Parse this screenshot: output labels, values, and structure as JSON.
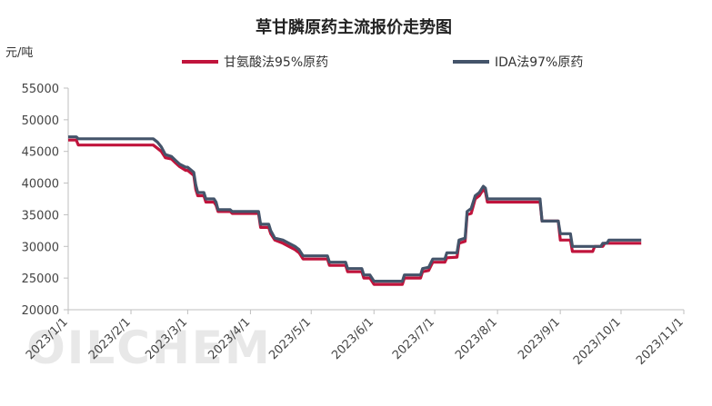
{
  "chart_data": {
    "type": "line",
    "title": "草甘膦原药主流报价走势图",
    "unit_label": "元/吨",
    "watermark": "OILCHEM",
    "x_ticks": [
      "2023/1/1",
      "2023/2/1",
      "2023/3/1",
      "2023/4/1",
      "2023/5/1",
      "2023/6/1",
      "2023/7/1",
      "2023/8/1",
      "2023/9/1",
      "2023/10/1",
      "2023/11/1"
    ],
    "y_ticks": [
      20000,
      25000,
      30000,
      35000,
      40000,
      45000,
      50000,
      55000
    ],
    "ylim": [
      20000,
      55000
    ],
    "xlim": [
      "2023-01-01",
      "2023-11-01"
    ],
    "legend_position": "top",
    "grid": false,
    "series": [
      {
        "name": "甘氨酸法95%原药",
        "color": "#c0143c",
        "points": [
          [
            "2023-01-01",
            46800
          ],
          [
            "2023-01-05",
            46800
          ],
          [
            "2023-01-06",
            46000
          ],
          [
            "2023-01-31",
            46000
          ],
          [
            "2023-02-12",
            46000
          ],
          [
            "2023-02-14",
            45500
          ],
          [
            "2023-02-16",
            45000
          ],
          [
            "2023-02-18",
            44000
          ],
          [
            "2023-02-21",
            43800
          ],
          [
            "2023-02-23",
            43200
          ],
          [
            "2023-02-25",
            42600
          ],
          [
            "2023-02-28",
            42000
          ],
          [
            "2023-03-01",
            42000
          ],
          [
            "2023-03-04",
            41200
          ],
          [
            "2023-03-05",
            39000
          ],
          [
            "2023-03-06",
            38000
          ],
          [
            "2023-03-09",
            38000
          ],
          [
            "2023-03-10",
            37000
          ],
          [
            "2023-03-14",
            37000
          ],
          [
            "2023-03-15",
            36500
          ],
          [
            "2023-03-16",
            35500
          ],
          [
            "2023-03-22",
            35500
          ],
          [
            "2023-03-23",
            35200
          ],
          [
            "2023-04-05",
            35200
          ],
          [
            "2023-04-06",
            33000
          ],
          [
            "2023-04-10",
            33000
          ],
          [
            "2023-04-11",
            32000
          ],
          [
            "2023-04-13",
            31000
          ],
          [
            "2023-04-17",
            30500
          ],
          [
            "2023-04-20",
            30000
          ],
          [
            "2023-04-23",
            29500
          ],
          [
            "2023-04-25",
            29000
          ],
          [
            "2023-04-27",
            28000
          ],
          [
            "2023-05-09",
            28000
          ],
          [
            "2023-05-10",
            27000
          ],
          [
            "2023-05-18",
            27000
          ],
          [
            "2023-05-19",
            26000
          ],
          [
            "2023-05-26",
            26000
          ],
          [
            "2023-05-27",
            25000
          ],
          [
            "2023-05-30",
            25000
          ],
          [
            "2023-06-01",
            24000
          ],
          [
            "2023-06-15",
            24000
          ],
          [
            "2023-06-16",
            25000
          ],
          [
            "2023-06-24",
            25000
          ],
          [
            "2023-06-25",
            26000
          ],
          [
            "2023-06-28",
            26200
          ],
          [
            "2023-06-30",
            27500
          ],
          [
            "2023-07-06",
            27500
          ],
          [
            "2023-07-07",
            28200
          ],
          [
            "2023-07-12",
            28300
          ],
          [
            "2023-07-13",
            30500
          ],
          [
            "2023-07-16",
            30800
          ],
          [
            "2023-07-17",
            35000
          ],
          [
            "2023-07-19",
            35200
          ],
          [
            "2023-07-21",
            37500
          ],
          [
            "2023-07-23",
            38000
          ],
          [
            "2023-07-25",
            39000
          ],
          [
            "2023-07-26",
            38600
          ],
          [
            "2023-07-27",
            37000
          ],
          [
            "2023-08-22",
            37000
          ],
          [
            "2023-08-23",
            34000
          ],
          [
            "2023-08-31",
            34000
          ],
          [
            "2023-09-01",
            31000
          ],
          [
            "2023-09-06",
            31000
          ],
          [
            "2023-09-07",
            29200
          ],
          [
            "2023-09-17",
            29200
          ],
          [
            "2023-09-18",
            30000
          ],
          [
            "2023-09-22",
            30000
          ],
          [
            "2023-09-23",
            30500
          ],
          [
            "2023-10-11",
            30500
          ]
        ]
      },
      {
        "name": "IDA法97%原药",
        "color": "#44546a",
        "points": [
          [
            "2023-01-01",
            47300
          ],
          [
            "2023-01-05",
            47300
          ],
          [
            "2023-01-06",
            47000
          ],
          [
            "2023-01-31",
            47000
          ],
          [
            "2023-02-12",
            47000
          ],
          [
            "2023-02-14",
            46500
          ],
          [
            "2023-02-16",
            45700
          ],
          [
            "2023-02-18",
            44500
          ],
          [
            "2023-02-21",
            44200
          ],
          [
            "2023-02-23",
            43600
          ],
          [
            "2023-02-25",
            43000
          ],
          [
            "2023-02-28",
            42500
          ],
          [
            "2023-03-01",
            42500
          ],
          [
            "2023-03-04",
            41700
          ],
          [
            "2023-03-05",
            39700
          ],
          [
            "2023-03-06",
            38500
          ],
          [
            "2023-03-09",
            38500
          ],
          [
            "2023-03-10",
            37500
          ],
          [
            "2023-03-14",
            37500
          ],
          [
            "2023-03-15",
            37000
          ],
          [
            "2023-03-16",
            35800
          ],
          [
            "2023-03-22",
            35800
          ],
          [
            "2023-03-23",
            35500
          ],
          [
            "2023-04-05",
            35500
          ],
          [
            "2023-04-06",
            33500
          ],
          [
            "2023-04-10",
            33500
          ],
          [
            "2023-04-11",
            32500
          ],
          [
            "2023-04-13",
            31300
          ],
          [
            "2023-04-17",
            31000
          ],
          [
            "2023-04-20",
            30500
          ],
          [
            "2023-04-23",
            30000
          ],
          [
            "2023-04-25",
            29500
          ],
          [
            "2023-04-27",
            28500
          ],
          [
            "2023-05-09",
            28500
          ],
          [
            "2023-05-10",
            27500
          ],
          [
            "2023-05-18",
            27500
          ],
          [
            "2023-05-19",
            26500
          ],
          [
            "2023-05-26",
            26500
          ],
          [
            "2023-05-27",
            25500
          ],
          [
            "2023-05-30",
            25500
          ],
          [
            "2023-06-01",
            24500
          ],
          [
            "2023-06-15",
            24500
          ],
          [
            "2023-06-16",
            25500
          ],
          [
            "2023-06-24",
            25500
          ],
          [
            "2023-06-25",
            26500
          ],
          [
            "2023-06-28",
            26700
          ],
          [
            "2023-06-30",
            28000
          ],
          [
            "2023-07-06",
            28000
          ],
          [
            "2023-07-07",
            29000
          ],
          [
            "2023-07-12",
            29000
          ],
          [
            "2023-07-13",
            31000
          ],
          [
            "2023-07-16",
            31300
          ],
          [
            "2023-07-17",
            35500
          ],
          [
            "2023-07-19",
            36000
          ],
          [
            "2023-07-21",
            38000
          ],
          [
            "2023-07-23",
            38500
          ],
          [
            "2023-07-25",
            39500
          ],
          [
            "2023-07-26",
            39200
          ],
          [
            "2023-07-27",
            37500
          ],
          [
            "2023-08-22",
            37500
          ],
          [
            "2023-08-23",
            34000
          ],
          [
            "2023-08-31",
            34000
          ],
          [
            "2023-09-01",
            32000
          ],
          [
            "2023-09-06",
            32000
          ],
          [
            "2023-09-07",
            30000
          ],
          [
            "2023-09-21",
            30000
          ],
          [
            "2023-09-22",
            30500
          ],
          [
            "2023-09-24",
            30500
          ],
          [
            "2023-09-25",
            31000
          ],
          [
            "2023-10-11",
            31000
          ]
        ]
      }
    ]
  }
}
